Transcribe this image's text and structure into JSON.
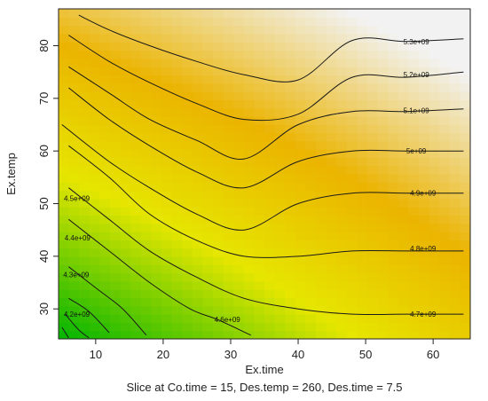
{
  "chart_data": {
    "type": "heatmap",
    "title": "",
    "xlabel": "Ex.time",
    "ylabel": "Ex.temp",
    "subtitle": "Slice at Co.time = 15, Des.temp = 260, Des.time = 7.5",
    "xlim": [
      4.5,
      65.5
    ],
    "ylim": [
      24.3,
      87
    ],
    "x_ticks": [
      "10",
      "20",
      "30",
      "40",
      "50",
      "60"
    ],
    "y_ticks": [
      "30",
      "40",
      "50",
      "60",
      "70",
      "80"
    ],
    "grid": false,
    "colormap": [
      "#00b400",
      "#e6e600",
      "#ebb400",
      "#f2f2f2"
    ],
    "response_range": [
      4100000000.0,
      5500000000.0
    ],
    "contours": [
      {
        "label": "5.3e+09",
        "points": [
          [
            7.5,
            85.8
          ],
          [
            12,
            83
          ],
          [
            18,
            80
          ],
          [
            25,
            77
          ],
          [
            32,
            74.5
          ],
          [
            40,
            73.5
          ],
          [
            48,
            81
          ],
          [
            56,
            80.8
          ],
          [
            64.5,
            81.3
          ]
        ],
        "label_at": [
          57.5,
          80.8
        ]
      },
      {
        "label": "5.2e+09",
        "points": [
          [
            6,
            82
          ],
          [
            12,
            77
          ],
          [
            18,
            73
          ],
          [
            25,
            69
          ],
          [
            32,
            66
          ],
          [
            40,
            67
          ],
          [
            48,
            74
          ],
          [
            56,
            74
          ],
          [
            64.5,
            75
          ]
        ],
        "label_at": [
          57.5,
          74.5
        ]
      },
      {
        "label": "5.1e+09",
        "points": [
          [
            6,
            76
          ],
          [
            12,
            71
          ],
          [
            18,
            66
          ],
          [
            25,
            62
          ],
          [
            32,
            58.5
          ],
          [
            40,
            65
          ],
          [
            48,
            67.5
          ],
          [
            56,
            67.5
          ],
          [
            64.5,
            68
          ]
        ],
        "label_at": [
          57.5,
          67.7
        ]
      },
      {
        "label": "5e+09",
        "points": [
          [
            6,
            72
          ],
          [
            12,
            66
          ],
          [
            18,
            61
          ],
          [
            25,
            56
          ],
          [
            32,
            53
          ],
          [
            40,
            58
          ],
          [
            48,
            60
          ],
          [
            56,
            60
          ],
          [
            64.5,
            60
          ]
        ],
        "label_at": [
          57.5,
          60
        ]
      },
      {
        "label": "4.9e+09",
        "points": [
          [
            5,
            65
          ],
          [
            12,
            58
          ],
          [
            18,
            53
          ],
          [
            25,
            48
          ],
          [
            32,
            45
          ],
          [
            40,
            50
          ],
          [
            48,
            52
          ],
          [
            56,
            52
          ],
          [
            64.5,
            52
          ]
        ],
        "label_at": [
          58.5,
          52
        ]
      },
      {
        "label": "4.8e+09",
        "points": [
          [
            6,
            61
          ],
          [
            12,
            55
          ],
          [
            18,
            48
          ],
          [
            25,
            43
          ],
          [
            32,
            40
          ],
          [
            40,
            40
          ],
          [
            48,
            41
          ],
          [
            56,
            41
          ],
          [
            64.5,
            41
          ]
        ],
        "label_at": [
          58.5,
          41.5
        ]
      },
      {
        "label": "4.7e+09",
        "points": [
          [
            6,
            53
          ],
          [
            12,
            47
          ],
          [
            18,
            41
          ],
          [
            25,
            36
          ],
          [
            32,
            32
          ],
          [
            40,
            30
          ],
          [
            48,
            29
          ],
          [
            56,
            29
          ],
          [
            64.5,
            29
          ]
        ],
        "label_at": [
          58.5,
          29
        ]
      },
      {
        "label": "4.6e+09",
        "points": [
          [
            6,
            47
          ],
          [
            12,
            41
          ],
          [
            18,
            35
          ],
          [
            24,
            30
          ],
          [
            28,
            28
          ],
          [
            33,
            25
          ]
        ],
        "label_at": [
          29.5,
          28
        ]
      },
      {
        "label": "4.5e+09",
        "points": [
          [
            6,
            38
          ],
          [
            10,
            34
          ],
          [
            14,
            30
          ],
          [
            17.5,
            25
          ]
        ],
        "label_at": [
          7.2,
          51
        ]
      },
      {
        "label": "4.4e+09",
        "points": [
          [
            6,
            32
          ],
          [
            9,
            29.5
          ],
          [
            12,
            25.5
          ]
        ],
        "label_at": [
          7.3,
          43.5
        ]
      },
      {
        "label": "4.3e+09",
        "points": [
          [
            5.5,
            29
          ],
          [
            7.5,
            26
          ],
          [
            9,
            24.5
          ]
        ],
        "label_at": [
          7.1,
          36.5
        ]
      },
      {
        "label": "4.2e+09",
        "points": [
          [
            5,
            26.5
          ],
          [
            6,
            24.5
          ]
        ],
        "label_at": [
          7.2,
          29
        ]
      }
    ]
  }
}
